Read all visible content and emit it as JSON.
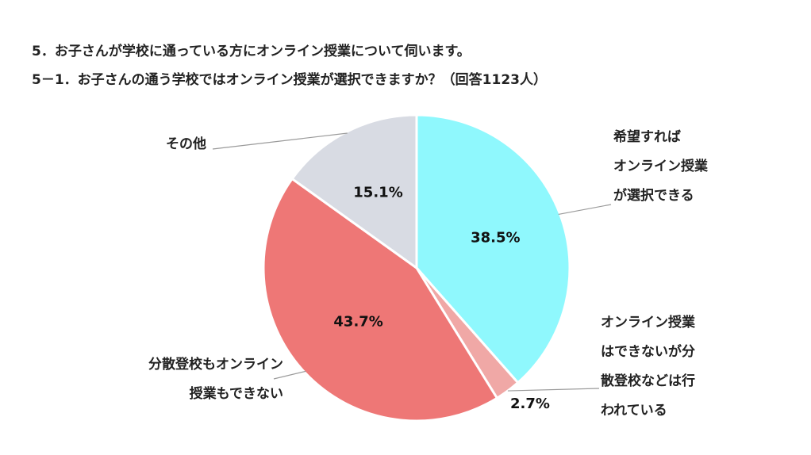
{
  "titles": {
    "line1": "5．お子さんが学校に通っている方にオンライン授業について伺います。",
    "line2": "5－1．お子さんの通う学校ではオンライン授業が選択できますか？（回答1123人）"
  },
  "chart_data": {
    "type": "pie",
    "title": "5－1．お子さんの通う学校ではオンライン授業が選択できますか？（回答1123人）",
    "slices": [
      {
        "label_lines": [
          "希望すれば",
          "オンライン授業",
          "が選択できる"
        ],
        "value": 38.5,
        "value_label": "38.5%",
        "color": "#8ff8fd"
      },
      {
        "label_lines": [
          "オンライン授業",
          "はできないが分",
          "散登校などは行",
          "われている"
        ],
        "value": 2.7,
        "value_label": "2.7%",
        "color": "#f0a8a6"
      },
      {
        "label_lines": [
          "分散登校もオンライン",
          "授業もできない"
        ],
        "value": 43.7,
        "value_label": "43.7%",
        "color": "#ee7776"
      },
      {
        "label_lines": [
          "その他"
        ],
        "value": 15.1,
        "value_label": "15.1%",
        "color": "#d8dbe3"
      }
    ],
    "start_angle": "12 o'clock",
    "direction": "clockwise",
    "legend": "none (callout labels with leader lines)"
  }
}
